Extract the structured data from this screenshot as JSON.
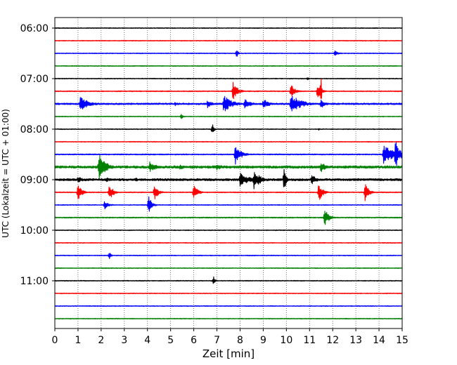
{
  "chart_data": {
    "type": "line",
    "title": "",
    "xlabel": "Zeit  [min]",
    "ylabel": "UTC (Lokalzeit = UTC + 01:00)",
    "xlim": [
      0,
      15
    ],
    "x_ticks": [
      "0",
      "1",
      "2",
      "3",
      "4",
      "5",
      "6",
      "7",
      "8",
      "9",
      "10",
      "11",
      "12",
      "13",
      "14",
      "15"
    ],
    "y_tick_labels": [
      "06:00",
      "07:00",
      "08:00",
      "09:00",
      "10:00",
      "11:00"
    ],
    "grid": "vertical dotted at each minute",
    "trace_interval_minutes": 15,
    "trace_colors": [
      "#000000",
      "#ff0000",
      "#0000ff",
      "#008000"
    ],
    "traces": [
      {
        "time": "06:00",
        "color": "#000000",
        "noise": 0.6,
        "events": []
      },
      {
        "time": "06:15",
        "color": "#ff0000",
        "noise": 0.6,
        "events": []
      },
      {
        "time": "06:30",
        "color": "#0000ff",
        "noise": 0.6,
        "events": [
          {
            "x": 7.85,
            "amp": 7,
            "dur": 0.15
          },
          {
            "x": 12.1,
            "amp": 4,
            "dur": 0.3
          }
        ]
      },
      {
        "time": "06:45",
        "color": "#008000",
        "noise": 0.6,
        "events": []
      },
      {
        "time": "07:00",
        "color": "#000000",
        "noise": 0.6,
        "events": [
          {
            "x": 10.9,
            "amp": 3,
            "dur": 0.15
          }
        ]
      },
      {
        "time": "07:15",
        "color": "#ff0000",
        "noise": 0.7,
        "events": [
          {
            "x": 7.7,
            "amp": 14,
            "dur": 0.4
          },
          {
            "x": 10.2,
            "amp": 10,
            "dur": 0.4
          },
          {
            "x": 11.35,
            "amp": 12,
            "dur": 0.3
          },
          {
            "x": 11.5,
            "amp": 28,
            "dur": 0.05
          }
        ]
      },
      {
        "time": "07:30",
        "color": "#0000ff",
        "noise": 1.2,
        "events": [
          {
            "x": 1.1,
            "amp": 10,
            "dur": 0.8
          },
          {
            "x": 5.2,
            "amp": 3,
            "dur": 0.1
          },
          {
            "x": 6.6,
            "amp": 6,
            "dur": 0.4
          },
          {
            "x": 7.3,
            "amp": 13,
            "dur": 0.7
          },
          {
            "x": 8.2,
            "amp": 8,
            "dur": 0.5
          },
          {
            "x": 9.0,
            "amp": 8,
            "dur": 0.5
          },
          {
            "x": 10.2,
            "amp": 14,
            "dur": 0.9
          },
          {
            "x": 11.5,
            "amp": 7,
            "dur": 0.4
          }
        ]
      },
      {
        "time": "07:45",
        "color": "#008000",
        "noise": 0.6,
        "events": [
          {
            "x": 5.45,
            "amp": 4,
            "dur": 0.2
          }
        ]
      },
      {
        "time": "08:00",
        "color": "#000000",
        "noise": 0.6,
        "events": [
          {
            "x": 6.8,
            "amp": 9,
            "dur": 0.15
          },
          {
            "x": 11.4,
            "amp": 2,
            "dur": 0.1
          }
        ]
      },
      {
        "time": "08:15",
        "color": "#ff0000",
        "noise": 0.6,
        "events": []
      },
      {
        "time": "08:30",
        "color": "#0000ff",
        "noise": 0.8,
        "events": [
          {
            "x": 7.8,
            "amp": 14,
            "dur": 0.5
          },
          {
            "x": 14.2,
            "amp": 14,
            "dur": 0.9
          },
          {
            "x": 14.7,
            "amp": 22,
            "dur": 0.4
          }
        ]
      },
      {
        "time": "08:45",
        "color": "#008000",
        "noise": 1.8,
        "events": [
          {
            "x": 1.9,
            "amp": 20,
            "dur": 0.6
          },
          {
            "x": 4.1,
            "amp": 8,
            "dur": 0.6
          },
          {
            "x": 5.4,
            "amp": 5,
            "dur": 0.4
          },
          {
            "x": 7.0,
            "amp": 5,
            "dur": 0.5
          },
          {
            "x": 11.5,
            "amp": 8,
            "dur": 0.4
          }
        ]
      },
      {
        "time": "09:00",
        "color": "#000000",
        "noise": 1.6,
        "events": [
          {
            "x": 1.0,
            "amp": 5,
            "dur": 0.5
          },
          {
            "x": 2.2,
            "amp": 4,
            "dur": 0.4
          },
          {
            "x": 3.5,
            "amp": 3,
            "dur": 0.4
          },
          {
            "x": 8.0,
            "amp": 10,
            "dur": 0.9
          },
          {
            "x": 8.6,
            "amp": 14,
            "dur": 0.6
          },
          {
            "x": 9.9,
            "amp": 22,
            "dur": 0.15
          },
          {
            "x": 11.1,
            "amp": 8,
            "dur": 0.4
          }
        ]
      },
      {
        "time": "09:15",
        "color": "#ff0000",
        "noise": 0.7,
        "events": [
          {
            "x": 1.0,
            "amp": 12,
            "dur": 0.35
          },
          {
            "x": 2.35,
            "amp": 12,
            "dur": 0.35
          },
          {
            "x": 4.3,
            "amp": 12,
            "dur": 0.35
          },
          {
            "x": 6.0,
            "amp": 12,
            "dur": 0.35
          },
          {
            "x": 11.4,
            "amp": 14,
            "dur": 0.35
          },
          {
            "x": 13.4,
            "amp": 14,
            "dur": 0.35
          }
        ]
      },
      {
        "time": "09:30",
        "color": "#0000ff",
        "noise": 0.6,
        "events": [
          {
            "x": 2.15,
            "amp": 7,
            "dur": 0.35
          },
          {
            "x": 4.05,
            "amp": 13,
            "dur": 0.3
          }
        ]
      },
      {
        "time": "09:45",
        "color": "#008000",
        "noise": 0.8,
        "events": [
          {
            "x": 11.65,
            "amp": 13,
            "dur": 0.4
          }
        ]
      },
      {
        "time": "10:00",
        "color": "#000000",
        "noise": 0.6,
        "events": []
      },
      {
        "time": "10:15",
        "color": "#ff0000",
        "noise": 0.6,
        "events": []
      },
      {
        "time": "10:30",
        "color": "#0000ff",
        "noise": 0.6,
        "events": [
          {
            "x": 2.35,
            "amp": 7,
            "dur": 0.15
          }
        ]
      },
      {
        "time": "10:45",
        "color": "#008000",
        "noise": 0.6,
        "events": []
      },
      {
        "time": "11:00",
        "color": "#000000",
        "noise": 0.6,
        "events": [
          {
            "x": 6.85,
            "amp": 8,
            "dur": 0.15
          }
        ]
      },
      {
        "time": "11:15",
        "color": "#ff0000",
        "noise": 0.6,
        "events": []
      },
      {
        "time": "11:30",
        "color": "#0000ff",
        "noise": 0.6,
        "events": []
      },
      {
        "time": "11:45",
        "color": "#008000",
        "noise": 0.6,
        "events": []
      }
    ]
  }
}
